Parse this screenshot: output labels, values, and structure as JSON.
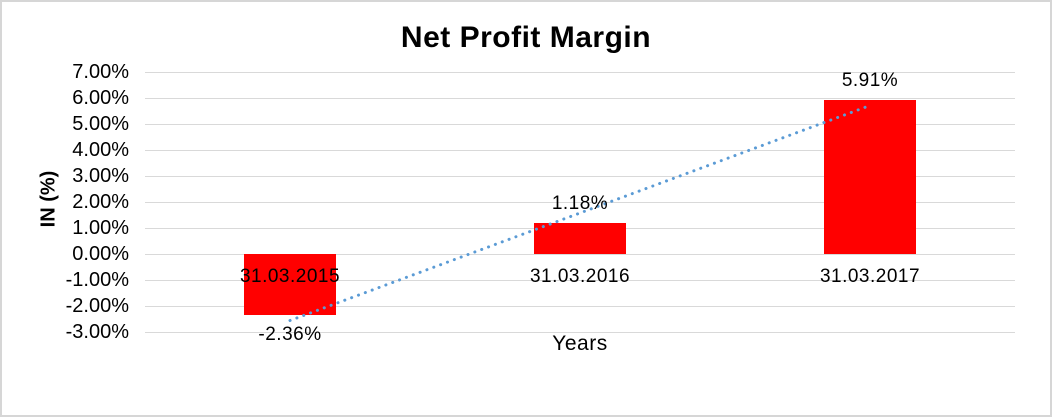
{
  "frame": {
    "background": "#ffffff",
    "border_color": "#d6d6d6"
  },
  "chart_data": {
    "type": "bar",
    "title": "Net Profit Margin",
    "xlabel": "Years",
    "ylabel": "IN (%)",
    "categories": [
      "31.03.2015",
      "31.03.2016",
      "31.03.2017"
    ],
    "values": [
      -2.36,
      1.18,
      5.91
    ],
    "data_labels": [
      "-2.36%",
      "1.18%",
      "5.91%"
    ],
    "ylim": [
      -3,
      7
    ],
    "ytick_step": 1,
    "ytick_labels": [
      "7.00%",
      "6.00%",
      "5.00%",
      "4.00%",
      "3.00%",
      "2.00%",
      "1.00%",
      "0.00%",
      "-1.00%",
      "-2.00%",
      "-3.00%"
    ],
    "grid": true,
    "legend": "none",
    "bar_color": "#ff0000",
    "gridline_color": "#d9d9d9",
    "text_color": "#000000",
    "trendline": {
      "type": "linear",
      "style": "dotted",
      "color": "#5b9bd5"
    }
  }
}
